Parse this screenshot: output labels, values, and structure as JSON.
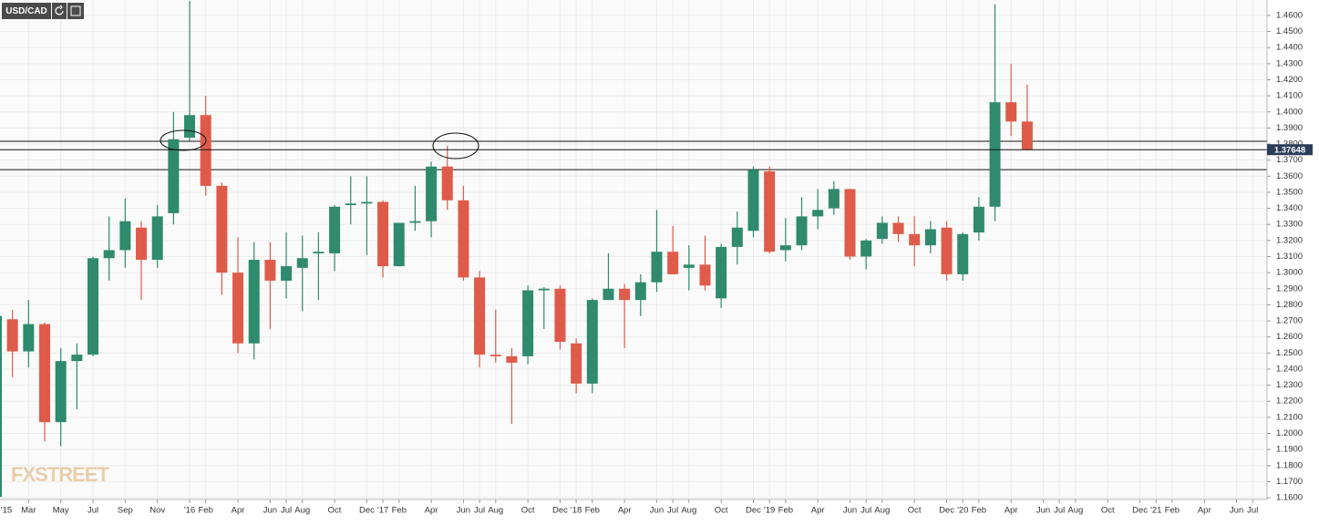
{
  "chart_data": {
    "type": "candlestick",
    "symbol": "USD/CAD",
    "watermark": "FXSTREET",
    "categories": [
      "'15",
      null,
      "Mar",
      null,
      "May",
      null,
      "Jul",
      null,
      "Sep",
      null,
      "Nov",
      null,
      "'16",
      "Feb",
      null,
      "Apr",
      null,
      "Jun",
      "Jul",
      "Aug",
      null,
      "Oct",
      null,
      "Dec",
      "'17",
      "Feb",
      null,
      "Apr",
      null,
      "Jun",
      "Jul",
      "Aug",
      null,
      "Oct",
      null,
      "Dec",
      "'18",
      "Feb",
      null,
      "Apr",
      null,
      "Jun",
      "Jul",
      "Aug",
      null,
      "Oct",
      null,
      "Dec",
      "'19",
      "Feb",
      null,
      "Apr",
      null,
      "Jun",
      "Jul",
      "Aug",
      null,
      "Oct",
      null,
      "Dec",
      "'20",
      "Feb",
      null,
      "Apr",
      null,
      "Jun",
      "Jul",
      "Aug",
      null,
      "Oct",
      null,
      "Dec",
      "'21",
      "Feb",
      null,
      "Apr",
      null,
      "Jun",
      "Jul"
    ],
    "open": [
      1.1605,
      1.271,
      1.251,
      1.268,
      1.207,
      1.245,
      1.249,
      1.309,
      1.314,
      1.328,
      1.308,
      1.337,
      1.384,
      1.398,
      1.354,
      1.3,
      1.256,
      1.308,
      1.295,
      1.303,
      1.312,
      1.312,
      1.342,
      1.343,
      1.344,
      1.304,
      1.331,
      1.332,
      1.366,
      1.345,
      1.297,
      1.249,
      1.248,
      1.248,
      1.289,
      1.29,
      1.256,
      1.231,
      1.283,
      1.29,
      1.283,
      1.294,
      1.313,
      1.303,
      1.305,
      1.284,
      1.316,
      1.326,
      1.363,
      1.314,
      1.317,
      1.335,
      1.34,
      1.352,
      1.31,
      1.321,
      1.331,
      1.324,
      1.317,
      1.328,
      1.299,
      1.325,
      1.341,
      1.406,
      1.394,
      null,
      null,
      null,
      null,
      null,
      null,
      null,
      null,
      null,
      null,
      null,
      null,
      null,
      null
    ],
    "high": [
      1.2795,
      1.277,
      1.283,
      1.269,
      1.253,
      1.256,
      1.31,
      1.335,
      1.346,
      1.332,
      1.342,
      1.4,
      1.469,
      1.41,
      1.356,
      1.322,
      1.319,
      1.319,
      1.325,
      1.323,
      1.325,
      1.342,
      1.36,
      1.36,
      1.345,
      1.331,
      1.354,
      1.369,
      1.379,
      1.354,
      1.301,
      1.277,
      1.253,
      1.292,
      1.291,
      1.292,
      1.259,
      1.284,
      1.312,
      1.293,
      1.299,
      1.339,
      1.329,
      1.317,
      1.323,
      1.318,
      1.338,
      1.366,
      1.366,
      1.334,
      1.347,
      1.352,
      1.357,
      1.352,
      1.321,
      1.335,
      1.335,
      1.335,
      1.332,
      1.332,
      1.325,
      1.347,
      1.467,
      1.43,
      1.417,
      null,
      null,
      null,
      null,
      null,
      null,
      null,
      null,
      null,
      null,
      null,
      null,
      null,
      null
    ],
    "low": [
      1.157,
      1.235,
      1.241,
      1.195,
      1.192,
      1.215,
      1.248,
      1.295,
      1.303,
      1.283,
      1.303,
      1.33,
      1.382,
      1.348,
      1.286,
      1.25,
      1.246,
      1.265,
      1.284,
      1.276,
      1.283,
      1.301,
      1.33,
      1.311,
      1.297,
      1.304,
      1.326,
      1.322,
      1.339,
      1.295,
      1.241,
      1.244,
      1.206,
      1.243,
      1.265,
      1.252,
      1.225,
      1.225,
      1.283,
      1.253,
      1.273,
      1.288,
      1.299,
      1.289,
      1.289,
      1.278,
      1.305,
      1.322,
      1.312,
      1.307,
      1.314,
      1.327,
      1.336,
      1.308,
      1.302,
      1.318,
      1.319,
      1.304,
      1.312,
      1.295,
      1.295,
      1.32,
      1.332,
      1.385,
      1.376,
      null,
      null,
      null,
      null,
      null,
      null,
      null,
      null,
      null,
      null,
      null,
      null,
      null,
      null
    ],
    "close": [
      1.273,
      1.251,
      1.268,
      1.207,
      1.245,
      1.249,
      1.309,
      1.314,
      1.332,
      1.308,
      1.335,
      1.383,
      1.398,
      1.354,
      1.3,
      1.256,
      1.308,
      1.295,
      1.304,
      1.309,
      1.313,
      1.341,
      1.343,
      1.344,
      1.304,
      1.331,
      1.332,
      1.366,
      1.345,
      1.297,
      1.249,
      1.248,
      1.244,
      1.289,
      1.29,
      1.257,
      1.231,
      1.283,
      1.29,
      1.283,
      1.294,
      1.313,
      1.299,
      1.305,
      1.292,
      1.316,
      1.328,
      1.364,
      1.313,
      1.317,
      1.335,
      1.339,
      1.352,
      1.31,
      1.32,
      1.331,
      1.324,
      1.317,
      1.327,
      1.299,
      1.324,
      1.341,
      1.406,
      1.394,
      1.37648,
      null,
      null,
      null,
      null,
      null,
      null,
      null,
      null,
      null,
      null,
      null,
      null,
      null,
      null
    ],
    "up_color": "#2f8a6e",
    "down_color": "#de5b49",
    "ylim": [
      1.1589,
      1.4696
    ],
    "yticks": [
      {
        "value": 1.16,
        "label": "1.1600"
      },
      {
        "value": 1.17,
        "label": "1.1700"
      },
      {
        "value": 1.18,
        "label": "1.1800"
      },
      {
        "value": 1.19,
        "label": "1.1900"
      },
      {
        "value": 1.2,
        "label": "1.2000"
      },
      {
        "value": 1.21,
        "label": "1.2100"
      },
      {
        "value": 1.22,
        "label": "1.2200"
      },
      {
        "value": 1.23,
        "label": "1.2300"
      },
      {
        "value": 1.24,
        "label": "1.2400"
      },
      {
        "value": 1.25,
        "label": "1.2500"
      },
      {
        "value": 1.26,
        "label": "1.2600"
      },
      {
        "value": 1.27,
        "label": "1.2700"
      },
      {
        "value": 1.28,
        "label": "1.2800"
      },
      {
        "value": 1.29,
        "label": "1.2900"
      },
      {
        "value": 1.3,
        "label": "1.3000"
      },
      {
        "value": 1.31,
        "label": "1.3100"
      },
      {
        "value": 1.32,
        "label": "1.3200"
      },
      {
        "value": 1.33,
        "label": "1.3300"
      },
      {
        "value": 1.34,
        "label": "1.3400"
      },
      {
        "value": 1.35,
        "label": "1.3500"
      },
      {
        "value": 1.36,
        "label": "1.3600"
      },
      {
        "value": 1.37,
        "label": "1.3700"
      },
      {
        "value": 1.38,
        "label": "1.3800"
      },
      {
        "value": 1.39,
        "label": "1.3900"
      },
      {
        "value": 1.4,
        "label": "1.4000"
      },
      {
        "value": 1.41,
        "label": "1.4100"
      },
      {
        "value": 1.42,
        "label": "1.4200"
      },
      {
        "value": 1.43,
        "label": "1.4300"
      },
      {
        "value": 1.44,
        "label": "1.4400"
      },
      {
        "value": 1.45,
        "label": "1.4500"
      },
      {
        "value": 1.46,
        "label": "1.4600"
      }
    ],
    "hlines": [
      1.3817,
      1.3641
    ],
    "last_price": {
      "value": 1.37648,
      "label": "1.37648"
    },
    "grid": true
  }
}
